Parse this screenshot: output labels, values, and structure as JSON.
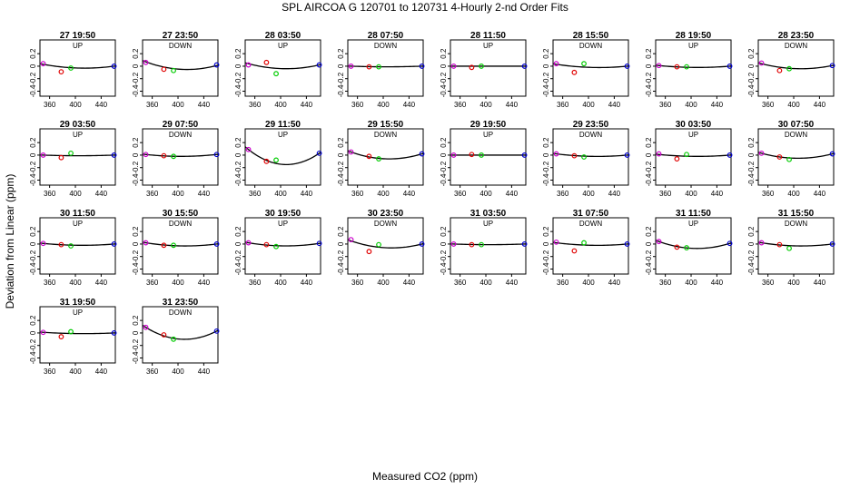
{
  "title": "SPL   AIRCOA G   120701 to 120731   4-Hourly 2-nd Order Fits",
  "ylabel": "Deviation from Linear (ppm)",
  "xlabel": "Measured CO2 (ppm)",
  "chart_data": {
    "type": "scatter",
    "xlim": [
      345,
      462
    ],
    "ylim": [
      -0.48,
      0.42
    ],
    "xticks": [
      360,
      400,
      440
    ],
    "xtick_labels": [
      "360",
      "400",
      "440"
    ],
    "yticks": [
      -0.4,
      -0.2,
      0.0,
      0.2
    ],
    "ytick_labels": [
      "-0.4",
      "-0.2",
      "0",
      "0.2"
    ],
    "point_x": [
      350,
      378,
      393,
      460
    ],
    "point_colors": [
      "#cc00cc",
      "#e00000",
      "#00cc00",
      "#0000cc"
    ],
    "panels": [
      {
        "title": "27 19:50",
        "dir": "UP",
        "fit": [
          0.03,
          -0.03,
          0.0
        ],
        "points": [
          0.04,
          -0.09,
          -0.03,
          0.0
        ]
      },
      {
        "title": "27 23:50",
        "dir": "DOWN",
        "fit": [
          0.07,
          -0.05,
          0.01
        ],
        "points": [
          0.06,
          -0.05,
          -0.07,
          0.02
        ]
      },
      {
        "title": "28 03:50",
        "dir": "UP",
        "fit": [
          0.04,
          -0.04,
          0.02
        ],
        "points": [
          0.02,
          0.06,
          -0.12,
          0.02
        ]
      },
      {
        "title": "28 07:50",
        "dir": "DOWN",
        "fit": [
          0.0,
          -0.01,
          0.0
        ],
        "points": [
          0.0,
          -0.01,
          -0.01,
          0.0
        ]
      },
      {
        "title": "28 11:50",
        "dir": "UP",
        "fit": [
          0.0,
          0.0,
          0.0
        ],
        "points": [
          0.0,
          -0.02,
          0.0,
          0.0
        ]
      },
      {
        "title": "28 15:50",
        "dir": "DOWN",
        "fit": [
          0.03,
          -0.02,
          0.0
        ],
        "points": [
          0.04,
          -0.1,
          0.04,
          0.0
        ]
      },
      {
        "title": "28 19:50",
        "dir": "UP",
        "fit": [
          0.01,
          -0.02,
          0.0
        ],
        "points": [
          0.01,
          -0.01,
          -0.01,
          0.0
        ]
      },
      {
        "title": "28 23:50",
        "dir": "DOWN",
        "fit": [
          0.04,
          -0.04,
          0.01
        ],
        "points": [
          0.05,
          -0.07,
          -0.04,
          0.01
        ]
      },
      {
        "title": "29 03:50",
        "dir": "UP",
        "fit": [
          0.0,
          -0.01,
          0.0
        ],
        "points": [
          0.0,
          -0.04,
          0.03,
          0.0
        ]
      },
      {
        "title": "29 07:50",
        "dir": "DOWN",
        "fit": [
          0.01,
          -0.02,
          0.01
        ],
        "points": [
          0.01,
          -0.01,
          -0.02,
          0.01
        ]
      },
      {
        "title": "29 11:50",
        "dir": "UP",
        "fit": [
          0.09,
          -0.15,
          0.03
        ],
        "points": [
          0.09,
          -0.1,
          -0.08,
          0.03
        ]
      },
      {
        "title": "29 15:50",
        "dir": "DOWN",
        "fit": [
          0.05,
          -0.06,
          0.02
        ],
        "points": [
          0.05,
          -0.02,
          -0.06,
          0.02
        ]
      },
      {
        "title": "29 19:50",
        "dir": "UP",
        "fit": [
          0.0,
          0.0,
          0.0
        ],
        "points": [
          0.0,
          0.01,
          0.0,
          0.0
        ]
      },
      {
        "title": "29 23:50",
        "dir": "DOWN",
        "fit": [
          0.02,
          -0.02,
          0.0
        ],
        "points": [
          0.02,
          -0.01,
          -0.03,
          0.0
        ]
      },
      {
        "title": "30 03:50",
        "dir": "UP",
        "fit": [
          0.01,
          -0.02,
          0.0
        ],
        "points": [
          0.02,
          -0.06,
          0.01,
          0.0
        ]
      },
      {
        "title": "30 07:50",
        "dir": "DOWN",
        "fit": [
          0.03,
          -0.05,
          0.02
        ],
        "points": [
          0.03,
          -0.03,
          -0.07,
          0.02
        ]
      },
      {
        "title": "30 11:50",
        "dir": "UP",
        "fit": [
          0.01,
          -0.02,
          0.0
        ],
        "points": [
          0.01,
          -0.01,
          -0.03,
          0.0
        ]
      },
      {
        "title": "30 15:50",
        "dir": "DOWN",
        "fit": [
          0.02,
          -0.03,
          0.0
        ],
        "points": [
          0.02,
          -0.02,
          -0.02,
          0.0
        ]
      },
      {
        "title": "30 19:50",
        "dir": "UP",
        "fit": [
          0.02,
          -0.03,
          0.01
        ],
        "points": [
          0.02,
          -0.01,
          -0.04,
          0.01
        ]
      },
      {
        "title": "30 23:50",
        "dir": "DOWN",
        "fit": [
          0.05,
          -0.06,
          0.0
        ],
        "points": [
          0.07,
          -0.12,
          -0.01,
          0.0
        ]
      },
      {
        "title": "31 03:50",
        "dir": "UP",
        "fit": [
          0.0,
          -0.01,
          0.0
        ],
        "points": [
          0.0,
          -0.01,
          -0.01,
          0.0
        ]
      },
      {
        "title": "31 07:50",
        "dir": "DOWN",
        "fit": [
          0.02,
          -0.02,
          0.0
        ],
        "points": [
          0.03,
          -0.11,
          0.02,
          0.0
        ]
      },
      {
        "title": "31 11:50",
        "dir": "UP",
        "fit": [
          0.04,
          -0.07,
          0.01
        ],
        "points": [
          0.04,
          -0.05,
          -0.06,
          0.01
        ]
      },
      {
        "title": "31 15:50",
        "dir": "DOWN",
        "fit": [
          0.02,
          -0.03,
          0.0
        ],
        "points": [
          0.02,
          -0.01,
          -0.07,
          0.0
        ]
      },
      {
        "title": "31 19:50",
        "dir": "UP",
        "fit": [
          0.01,
          -0.01,
          0.0
        ],
        "points": [
          0.01,
          -0.06,
          0.02,
          0.0
        ]
      },
      {
        "title": "31 23:50",
        "dir": "DOWN",
        "fit": [
          0.09,
          -0.1,
          0.03
        ],
        "points": [
          0.09,
          -0.03,
          -0.1,
          0.03
        ]
      }
    ]
  }
}
